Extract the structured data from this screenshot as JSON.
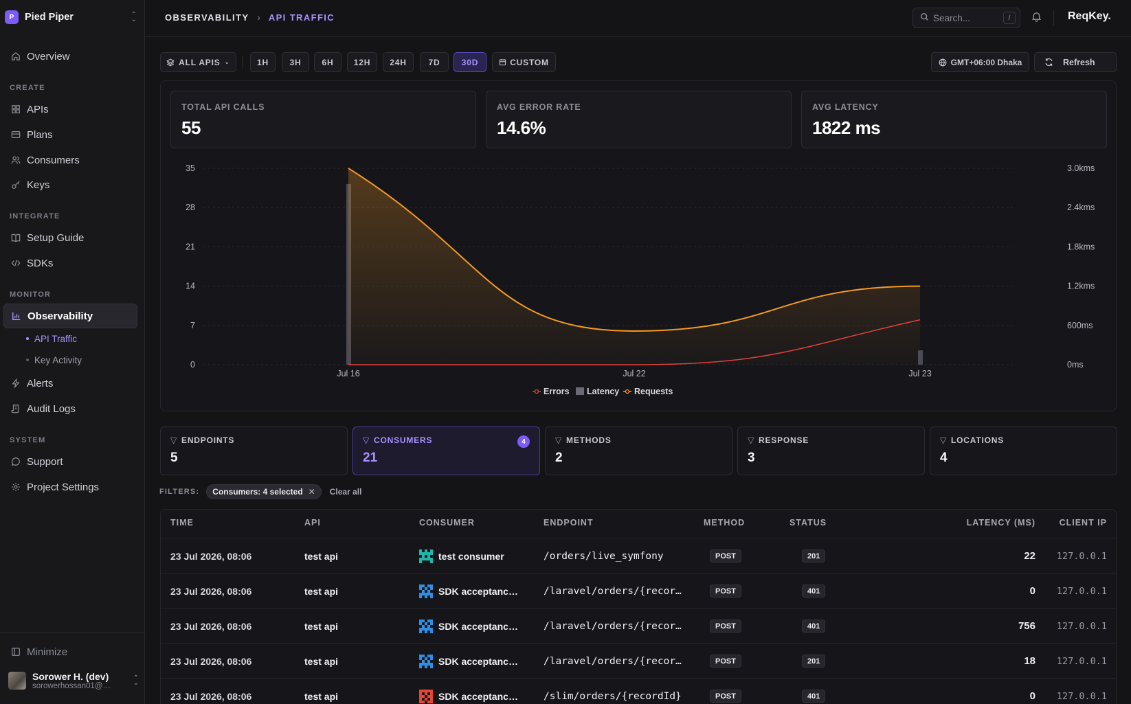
{
  "sidebar": {
    "org_initial": "P",
    "org_name": "Pied Piper",
    "overview": "Overview",
    "sections": {
      "create": "CREATE",
      "integrate": "INTEGRATE",
      "monitor": "MONITOR",
      "system": "SYSTEM"
    },
    "items": {
      "apis": "APIs",
      "plans": "Plans",
      "consumers": "Consumers",
      "keys": "Keys",
      "setup_guide": "Setup Guide",
      "sdks": "SDKs",
      "observability": "Observability",
      "api_traffic": "API Traffic",
      "key_activity": "Key Activity",
      "alerts": "Alerts",
      "audit_logs": "Audit Logs",
      "support": "Support",
      "project_settings": "Project Settings"
    },
    "minimize": "Minimize",
    "user_name": "Sorower H. (dev)",
    "user_email": "sorowerhossan01@g..."
  },
  "header": {
    "crumb_root": "OBSERVABILITY",
    "crumb_page": "API TRAFFIC",
    "search_placeholder": "Search...",
    "search_shortcut": "/",
    "brand": "ReqKey."
  },
  "toolbar": {
    "api_select": "ALL APIS",
    "ranges": [
      "1H",
      "3H",
      "6H",
      "12H",
      "24H",
      "7D",
      "30D"
    ],
    "active_range": "30D",
    "custom": "CUSTOM",
    "timezone": "GMT+06:00 Dhaka",
    "refresh": "Refresh"
  },
  "stats": {
    "total_calls_label": "TOTAL API CALLS",
    "total_calls": "55",
    "error_rate_label": "AVG ERROR RATE",
    "error_rate": "14.6%",
    "latency_label": "AVG LATENCY",
    "latency": "1822 ms"
  },
  "chart_data": {
    "type": "line",
    "x": [
      "Jul 16",
      "Jul 22",
      "Jul 23"
    ],
    "y_left_ticks": [
      "0",
      "7",
      "14",
      "21",
      "28",
      "35"
    ],
    "y_right_ticks": [
      "0ms",
      "600ms",
      "1.2kms",
      "1.8kms",
      "2.4kms",
      "3.0kms"
    ],
    "ylim_left": [
      0,
      35
    ],
    "ylim_right": [
      0,
      3000
    ],
    "series": [
      {
        "name": "Errors",
        "axis": "left",
        "values": [
          0,
          0,
          8
        ],
        "color": "#e0413d"
      },
      {
        "name": "Latency",
        "axis": "right",
        "type": "bar",
        "values": [
          2760,
          null,
          220
        ],
        "color": "#4a4a52"
      },
      {
        "name": "Requests",
        "axis": "left",
        "values": [
          35,
          6,
          14
        ],
        "color": "#f59a23"
      }
    ],
    "legend": "bottom-center"
  },
  "dimensions": [
    {
      "label": "ENDPOINTS",
      "value": "5"
    },
    {
      "label": "CONSUMERS",
      "value": "21",
      "count": "4",
      "selected": true
    },
    {
      "label": "METHODS",
      "value": "2"
    },
    {
      "label": "RESPONSE",
      "value": "3"
    },
    {
      "label": "LOCATIONS",
      "value": "4"
    }
  ],
  "filters": {
    "label": "FILTERS:",
    "chip": "Consumers: 4 selected",
    "clear": "Clear all"
  },
  "table": {
    "headers": {
      "time": "TIME",
      "api": "API",
      "consumer": "CONSUMER",
      "endpoint": "ENDPOINT",
      "method": "METHOD",
      "status": "STATUS",
      "latency": "LATENCY (MS)",
      "client_ip": "CLIENT IP"
    },
    "rows": [
      {
        "time": "23 Jul 2026, 08:06",
        "api": "test api",
        "consumer": "test consumer",
        "icon_color": "#1fb5a8",
        "endpoint": "/orders/live_symfony",
        "method": "POST",
        "status": "201",
        "latency": "22",
        "ip": "127.0.0.1"
      },
      {
        "time": "23 Jul 2026, 08:06",
        "api": "test api",
        "consumer": "SDK acceptance ...",
        "icon_color": "#2f8de4",
        "endpoint": "/laravel/orders/{recor…",
        "method": "POST",
        "status": "401",
        "latency": "0",
        "ip": "127.0.0.1"
      },
      {
        "time": "23 Jul 2026, 08:06",
        "api": "test api",
        "consumer": "SDK acceptance ...",
        "icon_color": "#2f8de4",
        "endpoint": "/laravel/orders/{recor…",
        "method": "POST",
        "status": "401",
        "latency": "756",
        "ip": "127.0.0.1"
      },
      {
        "time": "23 Jul 2026, 08:06",
        "api": "test api",
        "consumer": "SDK acceptance ...",
        "icon_color": "#2f8de4",
        "endpoint": "/laravel/orders/{recor…",
        "method": "POST",
        "status": "201",
        "latency": "18",
        "ip": "127.0.0.1"
      },
      {
        "time": "23 Jul 2026, 08:06",
        "api": "test api",
        "consumer": "SDK acceptance ...",
        "icon_color": "#e6452f",
        "endpoint": "/slim/orders/{recordId}",
        "method": "POST",
        "status": "401",
        "latency": "0",
        "ip": "127.0.0.1"
      }
    ]
  }
}
